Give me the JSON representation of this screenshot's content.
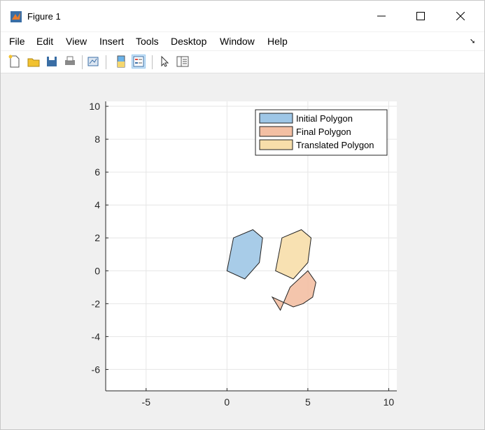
{
  "window": {
    "title": "Figure 1",
    "controls": {
      "minimize": "—",
      "maximize": "☐",
      "close": "✕"
    }
  },
  "menu": [
    "File",
    "Edit",
    "View",
    "Insert",
    "Tools",
    "Desktop",
    "Window",
    "Help"
  ],
  "toolbar": {
    "icons": [
      "new-figure-icon",
      "open-file-icon",
      "save-icon",
      "print-icon",
      "link-plot-icon",
      "colorbar-icon",
      "legend-icon",
      "pointer-icon",
      "property-inspector-icon"
    ]
  },
  "chart_data": {
    "type": "area",
    "title": "",
    "xlabel": "",
    "ylabel": "",
    "xlim": [
      -7.5,
      10.5
    ],
    "ylim": [
      -7.3,
      10.3
    ],
    "xticks": [
      -5,
      0,
      5,
      10
    ],
    "yticks": [
      -6,
      -4,
      -2,
      0,
      2,
      4,
      6,
      8,
      10
    ],
    "grid": true,
    "legend_position": "top-right",
    "series": [
      {
        "name": "Initial Polygon",
        "color": "#9ec6e6",
        "x": [
          0.0,
          0.4,
          1.6,
          2.2,
          2.0,
          1.1
        ],
        "y": [
          0.0,
          2.0,
          2.5,
          2.0,
          0.5,
          -0.5
        ]
      },
      {
        "name": "Final Polygon",
        "color": "#f3bfa3",
        "x": [
          3.3,
          3.9,
          5.0,
          5.5,
          5.3,
          4.7,
          4.1,
          2.8
        ],
        "y": [
          -2.4,
          -1.0,
          0.0,
          -0.7,
          -1.6,
          -2.0,
          -2.2,
          -1.6
        ]
      },
      {
        "name": "Translated Polygon",
        "color": "#f7deaa",
        "x": [
          3.0,
          3.4,
          4.6,
          5.2,
          5.0,
          4.1
        ],
        "y": [
          0.0,
          2.0,
          2.5,
          2.0,
          0.5,
          -0.5
        ]
      }
    ]
  }
}
